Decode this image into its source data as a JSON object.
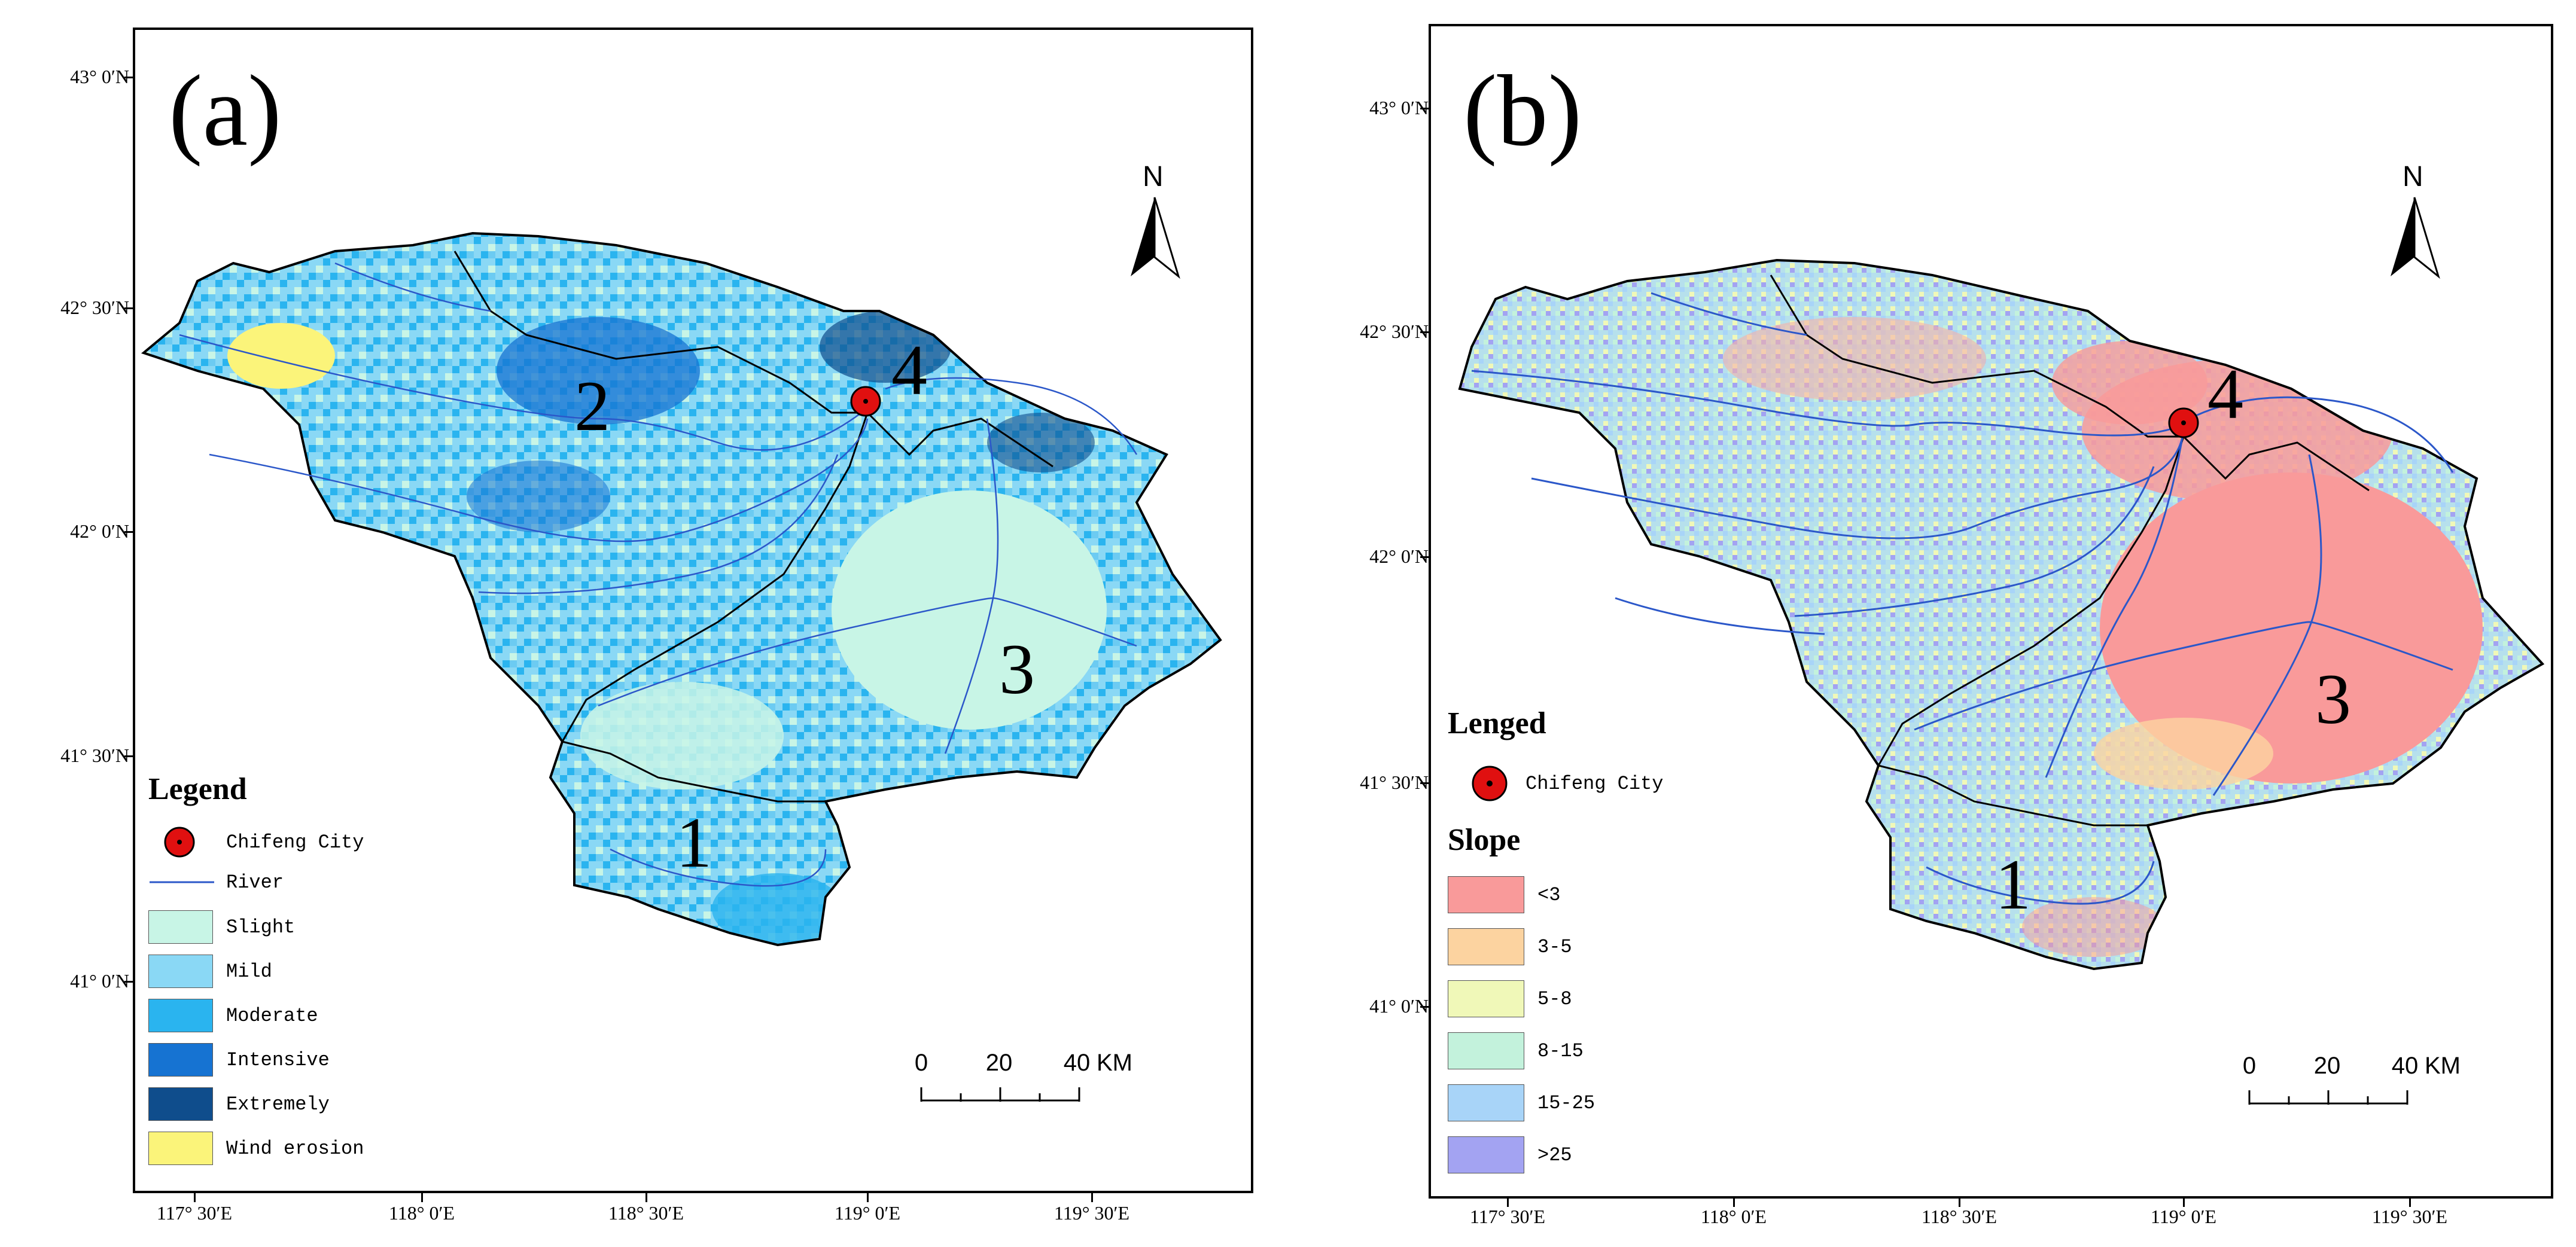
{
  "panel_a": {
    "label": "(a)",
    "north_label": "N",
    "lat_labels": [
      "43° 0′N",
      "42° 30′N",
      "42° 0′N",
      "41° 30′N",
      "41° 0′N"
    ],
    "lon_labels": [
      "117° 30′E",
      "118° 0′E",
      "118° 30′E",
      "119° 0′E",
      "119° 30′E"
    ],
    "region_numbers": [
      "1",
      "2",
      "3",
      "4"
    ],
    "legend": {
      "title": "Legend",
      "city": "Chifeng City",
      "river": "River",
      "classes": [
        {
          "label": "Slight",
          "color": "#c8f5e6"
        },
        {
          "label": "Mild",
          "color": "#8ad8f5"
        },
        {
          "label": "Moderate",
          "color": "#2ab4ef"
        },
        {
          "label": "Intensive",
          "color": "#1673d2"
        },
        {
          "label": "Extremely",
          "color": "#0f4d8c"
        },
        {
          "label": "Wind erosion",
          "color": "#fbf47a"
        }
      ]
    },
    "scale": {
      "ticks": [
        "0",
        "20",
        "40"
      ],
      "unit": "KM"
    }
  },
  "panel_b": {
    "label": "(b)",
    "north_label": "N",
    "lat_labels": [
      "43° 0′N",
      "42° 30′N",
      "42° 0′N",
      "41° 30′N",
      "41° 0′N"
    ],
    "lon_labels": [
      "117° 30′E",
      "118° 0′E",
      "118° 30′E",
      "119° 0′E",
      "119° 30′E"
    ],
    "region_numbers": [
      "1",
      "3",
      "4"
    ],
    "legend": {
      "title": "Lenged",
      "city": "Chifeng City",
      "slope_title": "Slope",
      "classes": [
        {
          "label": "<3",
          "color": "#f99a9a"
        },
        {
          "label": "3-5",
          "color": "#fcd3a0"
        },
        {
          "label": "5-8",
          "color": "#f0f8b8"
        },
        {
          "label": "8-15",
          "color": "#c3f2dc"
        },
        {
          "label": "15-25",
          "color": "#a8d4f8"
        },
        {
          "label": ">25",
          "color": "#a3a3f2"
        }
      ]
    },
    "scale": {
      "ticks": [
        "0",
        "20",
        "40"
      ],
      "unit": "KM"
    }
  },
  "colors": {
    "river": "#2b57c9",
    "city_marker": "#e01010",
    "boundary": "#000000"
  }
}
